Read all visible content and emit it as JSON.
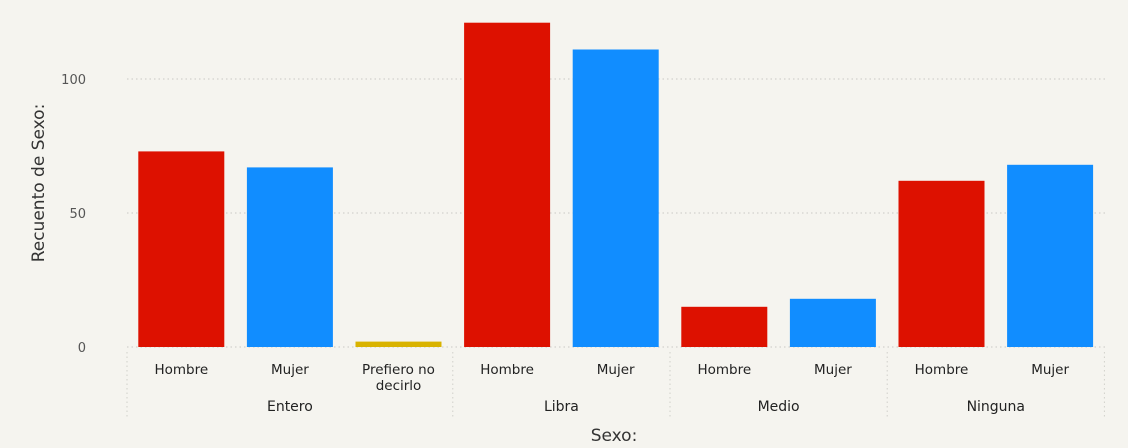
{
  "chart_data": {
    "type": "bar",
    "title": "",
    "xlabel": "Sexo:",
    "ylabel": "Recuento de Sexo:",
    "ylim": [
      0,
      125
    ],
    "yticks": [
      0,
      50,
      100
    ],
    "grid": true,
    "legend": "none",
    "groups": [
      {
        "name": "Entero",
        "bars": [
          {
            "category": "Hombre",
            "value": 73,
            "color": "#DD1100"
          },
          {
            "category": "Mujer",
            "value": 67,
            "color": "#118DFF"
          },
          {
            "category": "Prefiero no decirlo",
            "value": 2,
            "color": "#D9B300"
          }
        ]
      },
      {
        "name": "Libra",
        "bars": [
          {
            "category": "Hombre",
            "value": 121,
            "color": "#DD1100"
          },
          {
            "category": "Mujer",
            "value": 111,
            "color": "#118DFF"
          }
        ]
      },
      {
        "name": "Medio",
        "bars": [
          {
            "category": "Hombre",
            "value": 15,
            "color": "#DD1100"
          },
          {
            "category": "Mujer",
            "value": 18,
            "color": "#118DFF"
          }
        ]
      },
      {
        "name": "Ninguna",
        "bars": [
          {
            "category": "Hombre",
            "value": 62,
            "color": "#DD1100"
          },
          {
            "category": "Mujer",
            "value": 68,
            "color": "#118DFF"
          }
        ]
      }
    ]
  }
}
